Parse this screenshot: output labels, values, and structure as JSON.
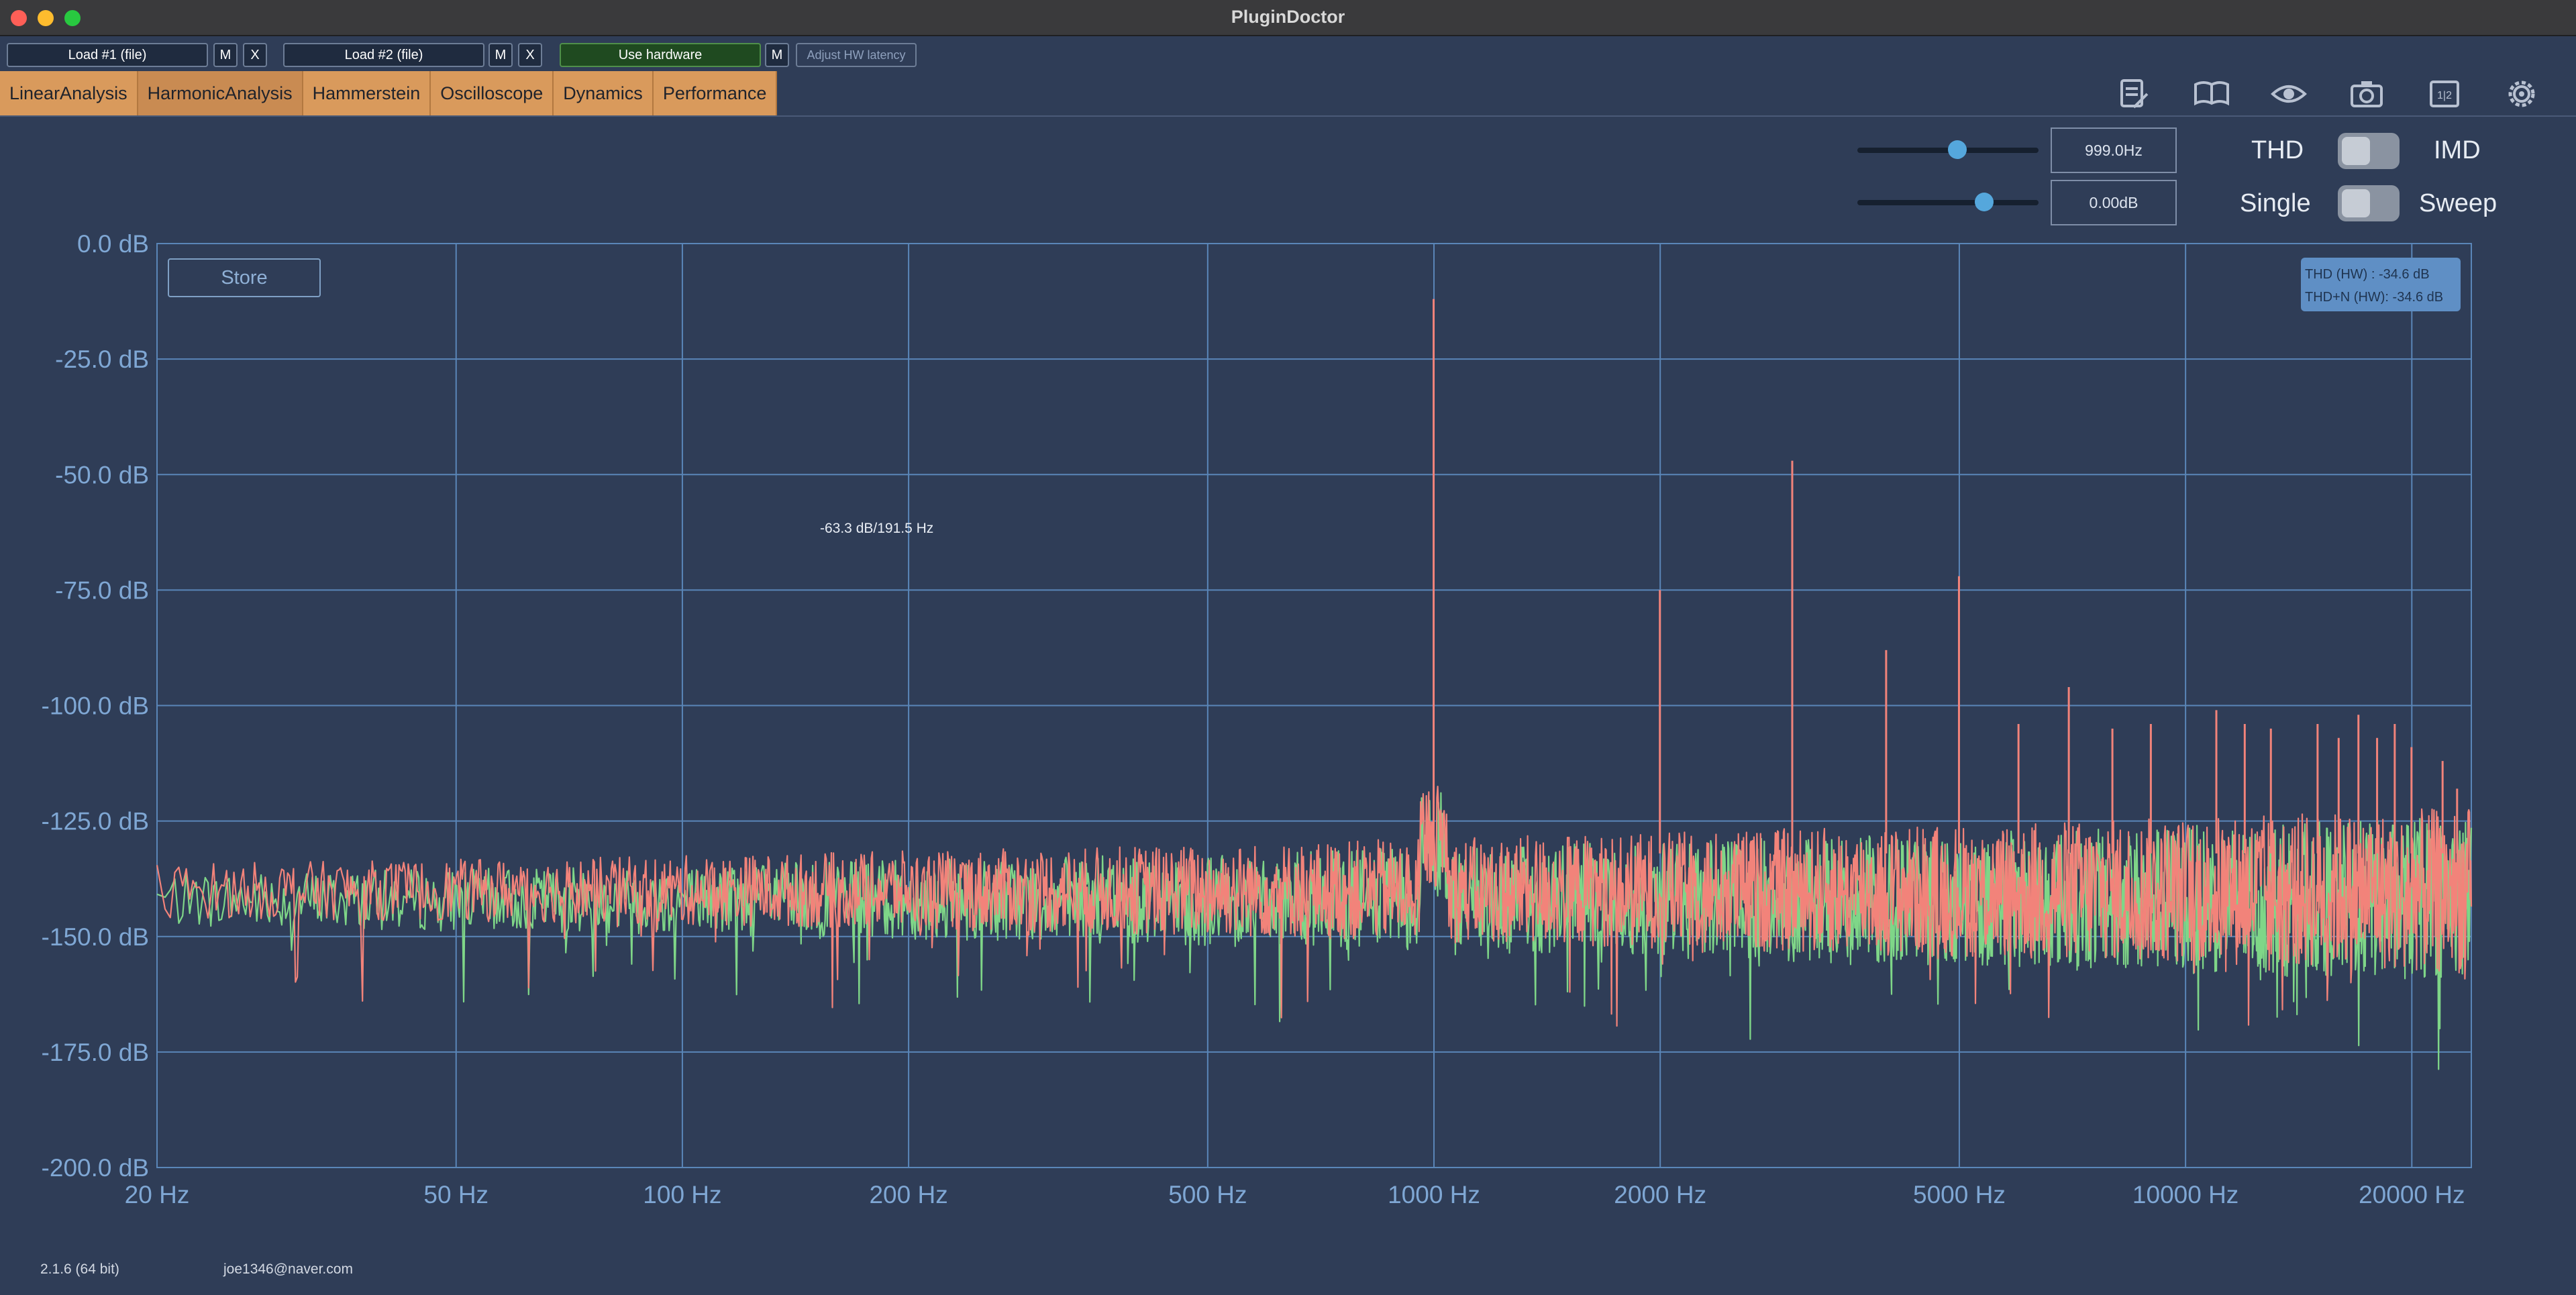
{
  "window": {
    "title": "PluginDoctor"
  },
  "top_buttons": {
    "load1": "Load #1 (file)",
    "m1": "M",
    "x1": "X",
    "load2": "Load #2 (file)",
    "m2": "M",
    "x2": "X",
    "use_hardware": "Use hardware",
    "m3": "M",
    "adjust_latency": "Adjust HW latency"
  },
  "tabs": [
    "LinearAnalysis",
    "HarmonicAnalysis",
    "Hammerstein",
    "Oscilloscope",
    "Dynamics",
    "Performance"
  ],
  "toolbar_icons": [
    "notes-icon",
    "book-icon",
    "eye-icon",
    "camera-icon",
    "split-view-icon",
    "gear-icon"
  ],
  "controls": {
    "frequency": {
      "value": "999.0Hz",
      "level": 0.55
    },
    "gain": {
      "value": "0.00dB",
      "level": 0.7
    },
    "mode_left": "THD",
    "mode_right": "IMD",
    "sweep_left": "Single",
    "sweep_right": "Sweep"
  },
  "store_label": "Store",
  "thd_readout": {
    "line1": "THD (HW) : -34.6 dB",
    "line2": "THD+N (HW): -34.6 dB"
  },
  "cursor_label": "-63.3 dB/191.5 Hz",
  "footer": {
    "version": "2.1.6 (64 bit)",
    "user": "joe1346@naver.com"
  },
  "colors": {
    "series1": "#f2837a",
    "series2": "#7fd688",
    "tab": "#d99a5c",
    "background": "#2f3d57"
  },
  "chart_data": {
    "type": "line",
    "x_scale": "log",
    "xlim": [
      20,
      24000
    ],
    "ylim": [
      -200,
      0
    ],
    "y_ticks": [
      0,
      -25,
      -50,
      -75,
      -100,
      -125,
      -150,
      -175,
      -200
    ],
    "y_tick_labels": [
      "0.0 dB",
      "-25.0 dB",
      "-50.0 dB",
      "-75.0 dB",
      "-100.0 dB",
      "-125.0 dB",
      "-150.0 dB",
      "-175.0 dB",
      "-200.0 dB"
    ],
    "x_ticks": [
      20,
      50,
      100,
      200,
      500,
      1000,
      2000,
      5000,
      10000,
      20000
    ],
    "x_tick_labels": [
      "20 Hz",
      "50 Hz",
      "100 Hz",
      "200 Hz",
      "500 Hz",
      "1000 Hz",
      "2000 Hz",
      "5000 Hz",
      "10000 Hz",
      "20000 Hz"
    ],
    "grid": true,
    "noise_floor": -140,
    "harmonics": [
      {
        "x": 999,
        "y": -12
      },
      {
        "x": 1998,
        "y": -75
      },
      {
        "x": 2997,
        "y": -47
      },
      {
        "x": 3996,
        "y": -88
      },
      {
        "x": 4995,
        "y": -72
      },
      {
        "x": 5994,
        "y": -104
      },
      {
        "x": 6993,
        "y": -96
      },
      {
        "x": 7992,
        "y": -105
      },
      {
        "x": 8991,
        "y": -104
      },
      {
        "x": 10989,
        "y": -101
      },
      {
        "x": 11988,
        "y": -104
      },
      {
        "x": 12987,
        "y": -105
      },
      {
        "x": 14985,
        "y": -104
      },
      {
        "x": 15984,
        "y": -107
      },
      {
        "x": 16983,
        "y": -102
      },
      {
        "x": 17982,
        "y": -107
      },
      {
        "x": 18981,
        "y": -104
      },
      {
        "x": 19980,
        "y": -109
      },
      {
        "x": 21978,
        "y": -112
      },
      {
        "x": 22977,
        "y": -118
      }
    ]
  }
}
